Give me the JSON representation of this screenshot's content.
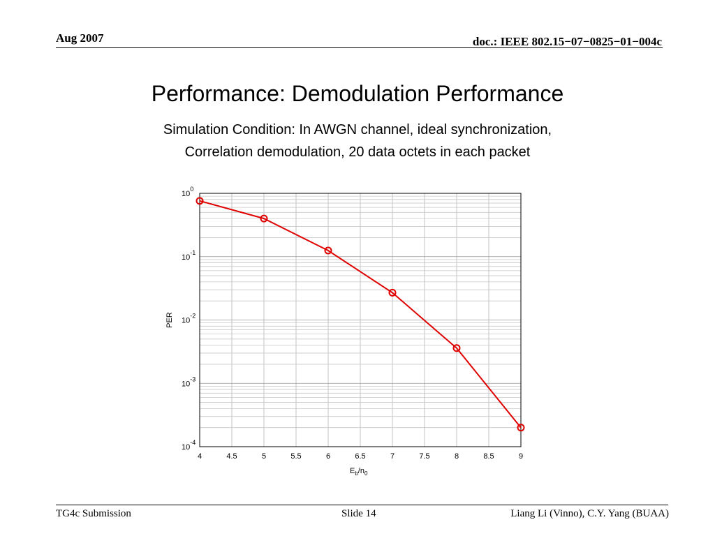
{
  "header": {
    "date": "Aug 2007",
    "doc_id": "doc.: IEEE 802.15−07−0825−01−004c"
  },
  "slide": {
    "title": "Performance: Demodulation Performance",
    "subtitle_line1": "Simulation Condition: In AWGN channel, ideal synchronization,",
    "subtitle_line2": "Correlation demodulation, 20 data octets in each packet"
  },
  "footer": {
    "left": "TG4c Submission",
    "center": "Slide 14",
    "right": "Liang Li (Vinno), C.Y. Yang (BUAA)"
  },
  "chart_data": {
    "type": "line",
    "title": "",
    "xlabel": "E_b/n_0",
    "ylabel": "PER",
    "xlim": [
      4,
      9
    ],
    "ylim": [
      0.0001,
      1
    ],
    "yscale": "log",
    "x_ticks": [
      "4",
      "4.5",
      "5",
      "5.5",
      "6",
      "6.5",
      "7",
      "7.5",
      "8",
      "8.5",
      "9"
    ],
    "y_ticks": [
      {
        "base": "10",
        "exp": "0"
      },
      {
        "base": "10",
        "exp": "-1"
      },
      {
        "base": "10",
        "exp": "-2"
      },
      {
        "base": "10",
        "exp": "-3"
      },
      {
        "base": "10",
        "exp": "-4"
      }
    ],
    "grid": true,
    "series": [
      {
        "color": "#e00000",
        "marker": "circle",
        "x": [
          4,
          5,
          6,
          7,
          8,
          9
        ],
        "y": [
          0.76,
          0.4,
          0.125,
          0.027,
          0.0036,
          0.0002
        ]
      }
    ]
  }
}
